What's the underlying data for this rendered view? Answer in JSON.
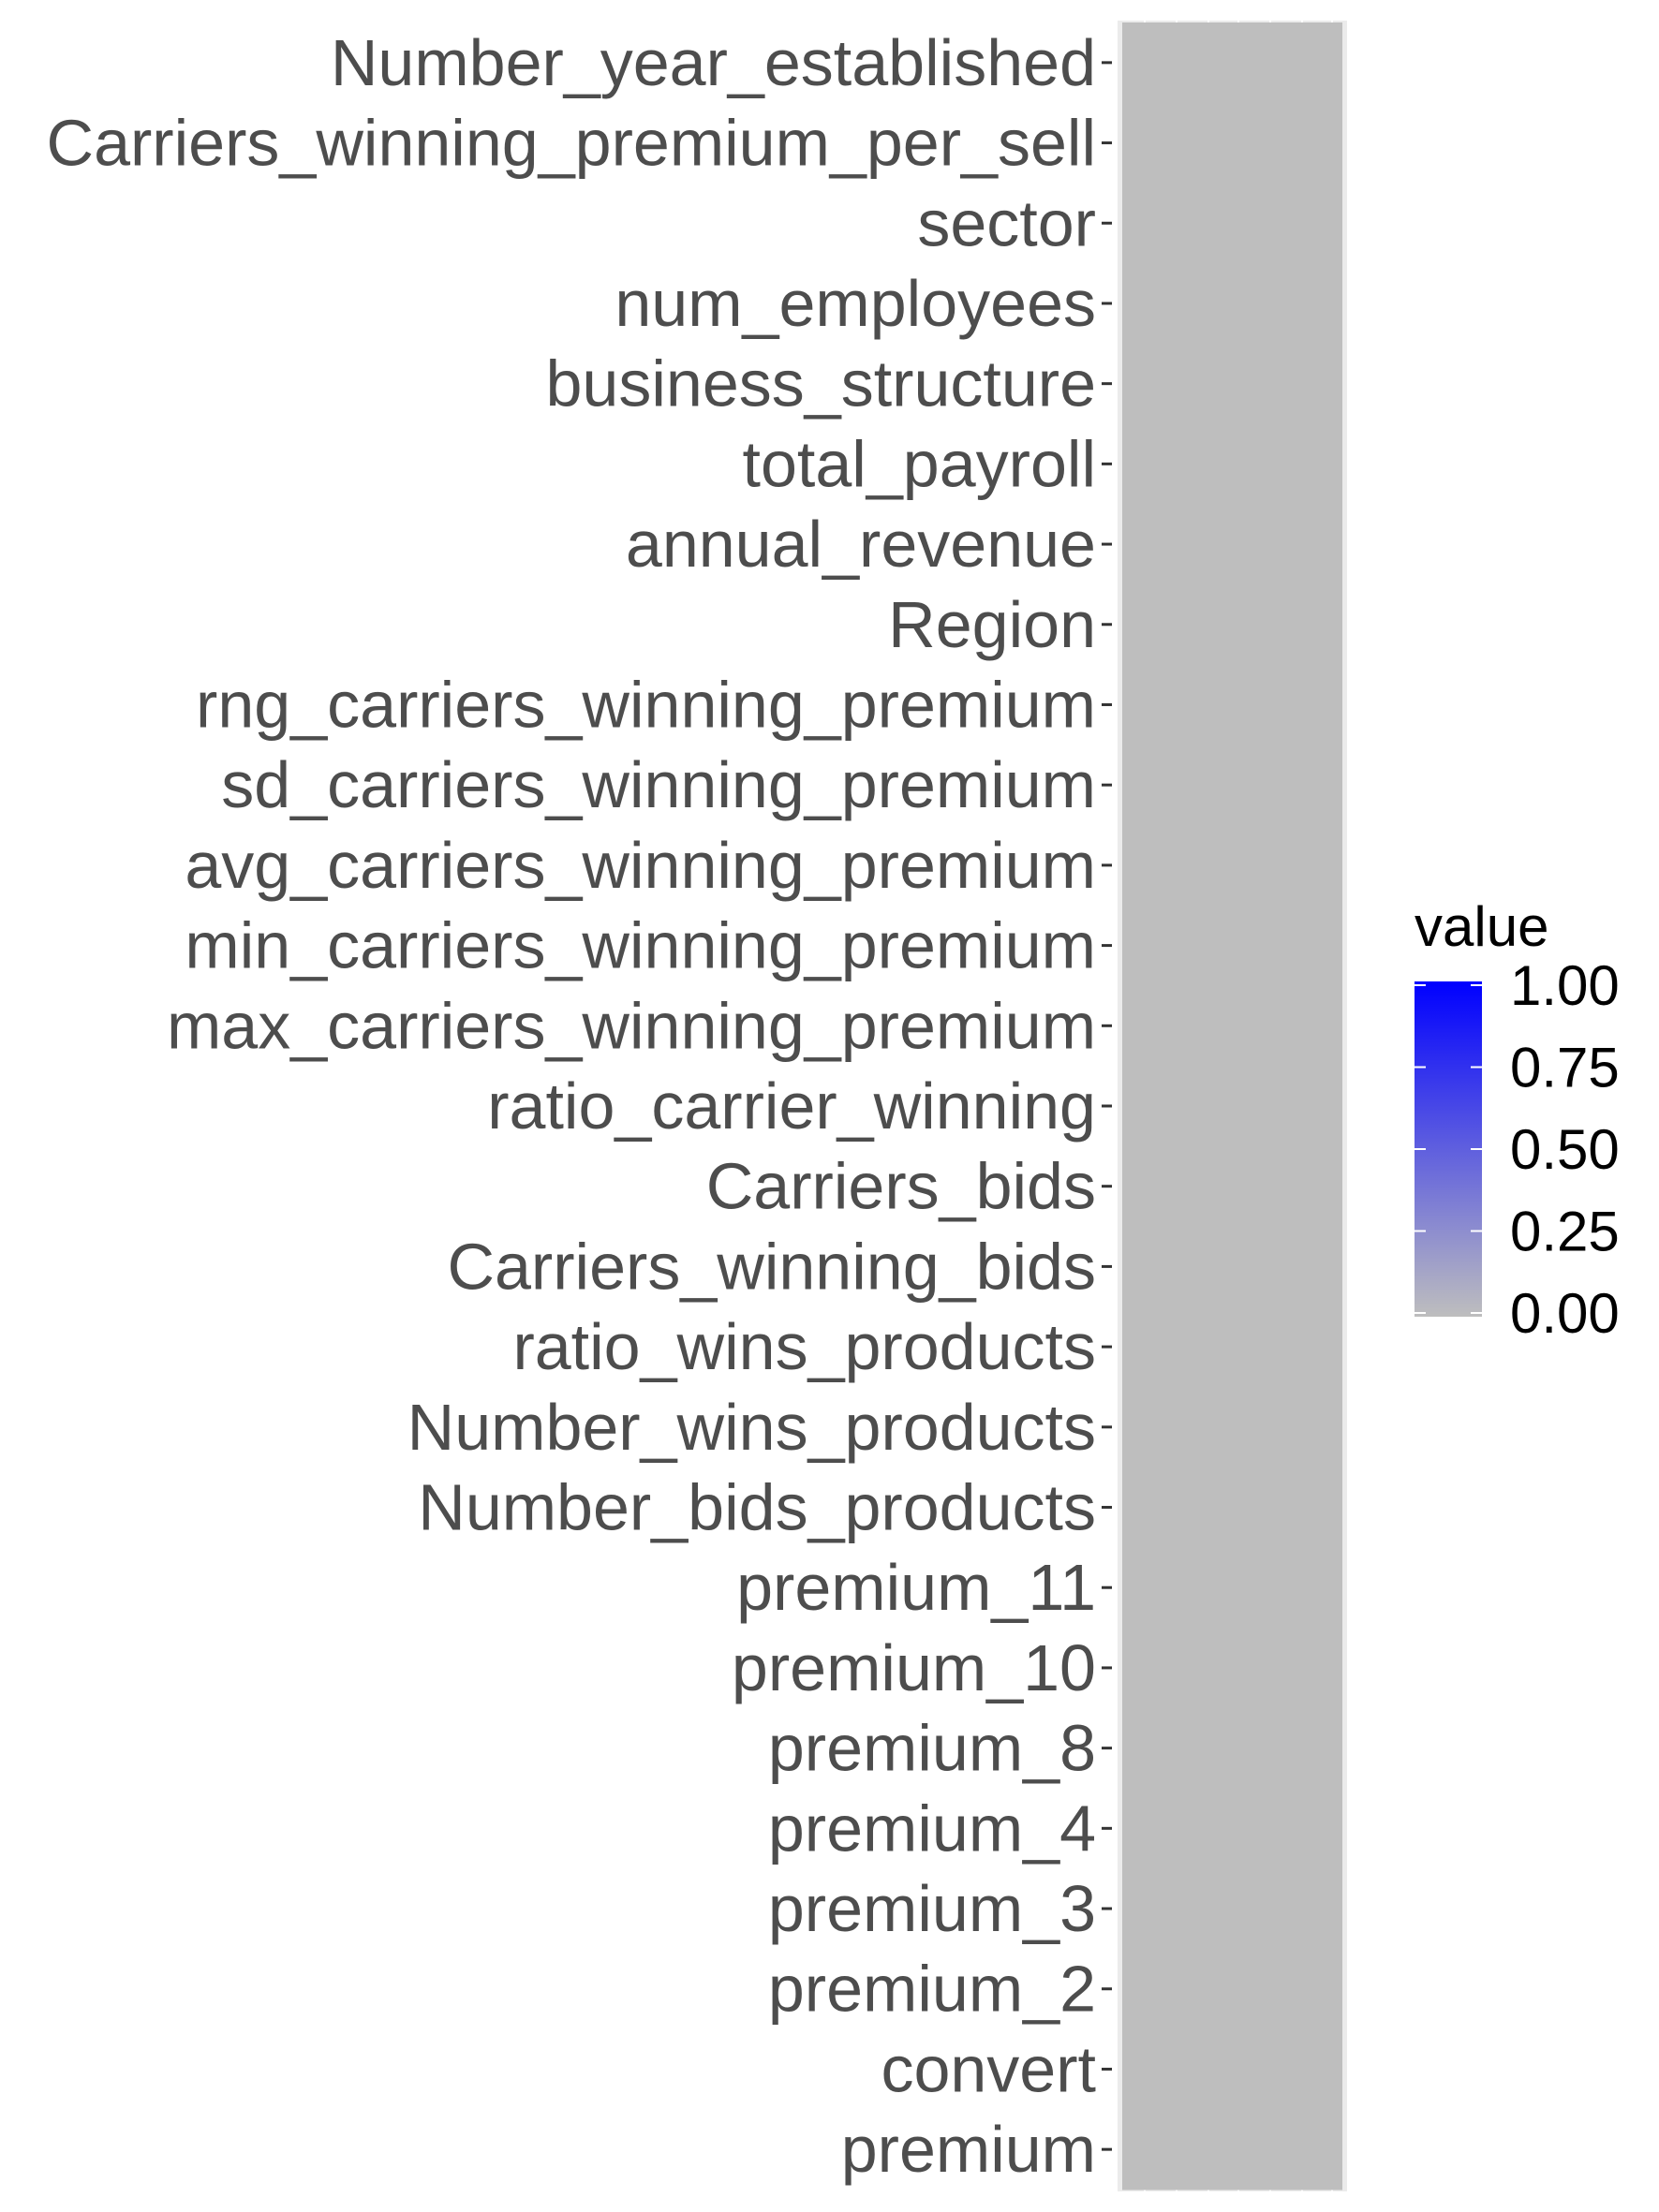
{
  "chart_data": {
    "type": "heatmap",
    "title": "",
    "xlabel": "",
    "ylabel": "",
    "y_categories": [
      "Number_year_established",
      "Carriers_winning_premium_per_sell",
      "sector",
      "num_employees",
      "business_structure",
      "total_payroll",
      "annual_revenue",
      "Region",
      "rng_carriers_winning_premium",
      "sd_carriers_winning_premium",
      "avg_carriers_winning_premium",
      "min_carriers_winning_premium",
      "max_carriers_winning_premium",
      "ratio_carrier_winning",
      "Carriers_bids",
      "Carriers_winning_bids",
      "ratio_wins_products",
      "Number_wins_products",
      "Number_bids_products",
      "premium_11",
      "premium_10",
      "premium_8",
      "premium_4",
      "premium_3",
      "premium_2",
      "convert",
      "premium"
    ],
    "values": [
      0,
      0,
      0,
      0,
      0,
      0,
      0,
      0,
      0,
      0,
      0,
      0,
      0,
      0,
      0,
      0,
      0,
      0,
      0,
      0,
      0,
      0,
      0,
      0,
      0,
      0,
      0
    ],
    "color_scale": {
      "low": "#bebebe",
      "high": "#0000ff",
      "limits": [
        0,
        1
      ]
    },
    "legend": {
      "title": "value",
      "ticks": [
        "1.00",
        "0.75",
        "0.50",
        "0.25",
        "0.00"
      ],
      "tick_values": [
        1,
        0.75,
        0.5,
        0.25,
        0
      ],
      "placement": "right"
    },
    "panel_background": "#ebebeb",
    "grid": true
  }
}
